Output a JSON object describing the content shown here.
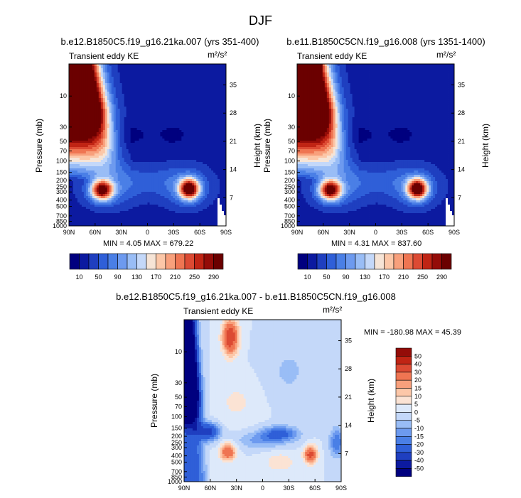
{
  "figure_title": "DJF",
  "chart_data": [
    {
      "type": "heatmap",
      "id": "top-left",
      "title": "b.e12.B1850C5.f19_g16.21ka.007 (yrs 351-400)",
      "subtitle_left": "Transient eddy KE",
      "units": "m²/s²",
      "xlabel": "",
      "ylabel": "Pressure (mb)",
      "ylabel_right": "Height (km)",
      "x_ticks": [
        "90N",
        "60N",
        "30N",
        "0",
        "30S",
        "60S",
        "90S"
      ],
      "y_ticks": [
        "10",
        "30",
        "50",
        "70",
        "100",
        "150",
        "200",
        "250",
        "300",
        "400",
        "500",
        "700",
        "850",
        "1000"
      ],
      "y_right_ticks": [
        "35",
        "28",
        "21",
        "14",
        "7"
      ],
      "min_text": "MIN =   4.05  MAX = 679.22",
      "min": 4.05,
      "max": 679.22,
      "colorbar_ticks": [
        "10",
        "50",
        "90",
        "130",
        "170",
        "210",
        "250",
        "290"
      ],
      "colorbar_levels": [
        10,
        30,
        50,
        70,
        90,
        110,
        130,
        150,
        170,
        190,
        210,
        230,
        250,
        270,
        290
      ],
      "features": [
        {
          "lat": 52,
          "pressure": 280,
          "value": 300,
          "label": "NH jet max"
        },
        {
          "lat": -48,
          "pressure": 270,
          "value": 290,
          "label": "SH jet max"
        },
        {
          "lat": 78,
          "pressure": 3,
          "value": 679,
          "label": "NH polar stratosphere"
        }
      ]
    },
    {
      "type": "heatmap",
      "id": "top-right",
      "title": "b.e11.B1850C5CN.f19_g16.008 (yrs 1351-1400)",
      "subtitle_left": "Transient eddy KE",
      "units": "m²/s²",
      "xlabel": "",
      "ylabel": "Pressure (mb)",
      "ylabel_right": "Height (km)",
      "x_ticks": [
        "90N",
        "60N",
        "30N",
        "0",
        "30S",
        "60S",
        "90S"
      ],
      "y_ticks": [
        "10",
        "30",
        "50",
        "70",
        "100",
        "150",
        "200",
        "250",
        "300",
        "400",
        "500",
        "700",
        "850",
        "1000"
      ],
      "y_right_ticks": [
        "35",
        "28",
        "21",
        "14",
        "7"
      ],
      "min_text": "MIN =   4.31  MAX = 837.60",
      "min": 4.31,
      "max": 837.6,
      "colorbar_ticks": [
        "10",
        "50",
        "90",
        "130",
        "170",
        "210",
        "250",
        "290"
      ],
      "colorbar_levels": [
        10,
        30,
        50,
        70,
        90,
        110,
        130,
        150,
        170,
        190,
        210,
        230,
        250,
        270,
        290
      ],
      "features": [
        {
          "lat": 52,
          "pressure": 270,
          "value": 280,
          "label": "NH jet max"
        },
        {
          "lat": -48,
          "pressure": 260,
          "value": 290,
          "label": "SH jet max"
        },
        {
          "lat": 78,
          "pressure": 3,
          "value": 837.6,
          "label": "NH polar stratosphere"
        }
      ]
    },
    {
      "type": "heatmap",
      "id": "bottom-diff",
      "title": "b.e12.B1850C5.f19_g16.21ka.007 - b.e11.B1850C5CN.f19_g16.008",
      "subtitle_left": "Transient eddy KE",
      "units": "m²/s²",
      "xlabel": "",
      "ylabel": "Pressure (mb)",
      "ylabel_right": "Height (km)",
      "x_ticks": [
        "90N",
        "60N",
        "30N",
        "0",
        "30S",
        "60S",
        "90S"
      ],
      "y_ticks": [
        "10",
        "30",
        "50",
        "70",
        "100",
        "150",
        "200",
        "250",
        "300",
        "400",
        "500",
        "700",
        "850",
        "1000"
      ],
      "y_right_ticks": [
        "35",
        "28",
        "21",
        "14",
        "7"
      ],
      "min_text": "MIN = -180.98  MAX =  45.39",
      "min": -180.98,
      "max": 45.39,
      "colorbar_ticks": [
        "50",
        "40",
        "30",
        "20",
        "15",
        "10",
        "5",
        "0",
        "-5",
        "-10",
        "-15",
        "-20",
        "-30",
        "-40",
        "-50"
      ],
      "features": [
        {
          "lat": 37,
          "pressure": 5,
          "value": 40,
          "label": "positive upper max"
        },
        {
          "lat": 40,
          "pressure": 350,
          "value": 35,
          "label": "positive NH jet"
        },
        {
          "lat": -55,
          "pressure": 380,
          "value": 40,
          "label": "positive SH jet"
        },
        {
          "lat": 85,
          "pressure": 20,
          "value": -180.98,
          "label": "negative polar"
        }
      ]
    }
  ]
}
